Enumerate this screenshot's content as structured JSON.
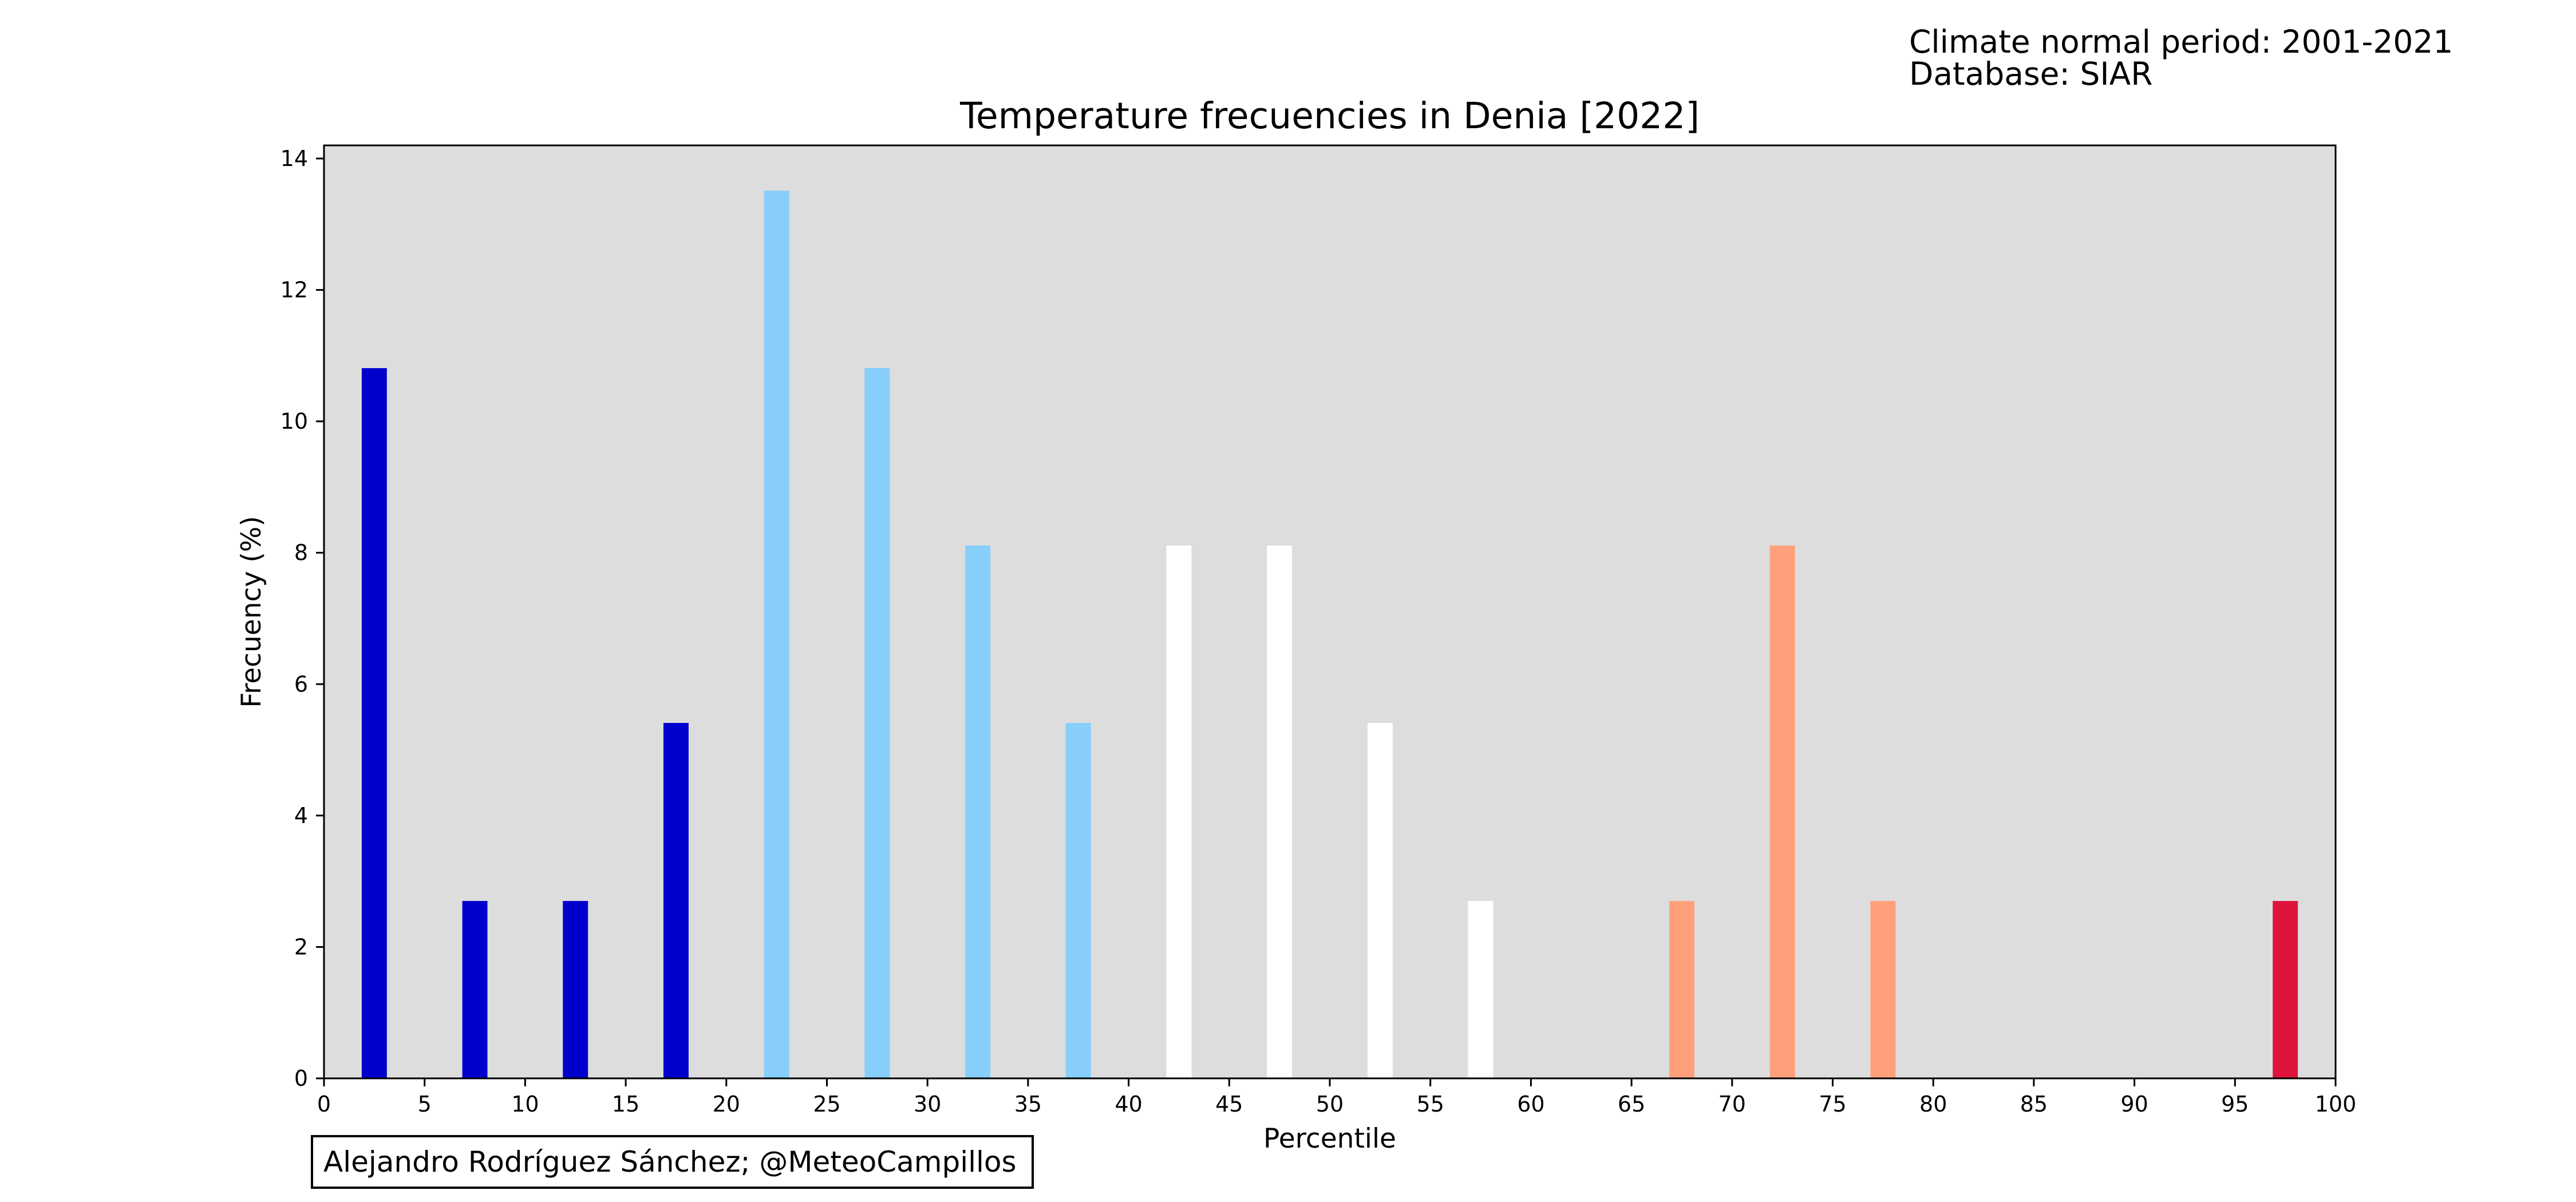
{
  "info": {
    "climate_normal": "Climate normal period: 2001-2021",
    "database": "Database: SIAR"
  },
  "credit": "Alejandro Rodríguez Sánchez; @MeteoCampillos",
  "colors": {
    "background": "#dddddd",
    "very_cold": "#0000cd",
    "cold": "#87cefa",
    "normal": "#ffffff",
    "warm": "#ffa07a",
    "very_warm": "#dc143c"
  },
  "chart_data": {
    "type": "bar",
    "title": "Temperature frecuencies in Denia [2022]",
    "xlabel": "Percentile",
    "ylabel": "Frecuency (%)",
    "xlim": [
      0,
      100
    ],
    "ylim": [
      0,
      14.2
    ],
    "xticks": [
      0,
      5,
      10,
      15,
      20,
      25,
      30,
      35,
      40,
      45,
      50,
      55,
      60,
      65,
      70,
      75,
      80,
      85,
      90,
      95,
      100
    ],
    "yticks": [
      0,
      2,
      4,
      6,
      8,
      10,
      12,
      14
    ],
    "bar_width": 1.25,
    "grid": false,
    "bars": [
      {
        "x": 2.5,
        "value": 10.81,
        "color": "#0000cd"
      },
      {
        "x": 7.5,
        "value": 2.7,
        "color": "#0000cd"
      },
      {
        "x": 12.5,
        "value": 2.7,
        "color": "#0000cd"
      },
      {
        "x": 17.5,
        "value": 5.41,
        "color": "#0000cd"
      },
      {
        "x": 22.5,
        "value": 13.51,
        "color": "#87cefa"
      },
      {
        "x": 27.5,
        "value": 10.81,
        "color": "#87cefa"
      },
      {
        "x": 32.5,
        "value": 8.11,
        "color": "#87cefa"
      },
      {
        "x": 37.5,
        "value": 5.41,
        "color": "#87cefa"
      },
      {
        "x": 42.5,
        "value": 8.11,
        "color": "#ffffff"
      },
      {
        "x": 47.5,
        "value": 8.11,
        "color": "#ffffff"
      },
      {
        "x": 52.5,
        "value": 5.41,
        "color": "#ffffff"
      },
      {
        "x": 57.5,
        "value": 2.7,
        "color": "#ffffff"
      },
      {
        "x": 62.5,
        "value": 0,
        "color": "#ffffff"
      },
      {
        "x": 67.5,
        "value": 2.7,
        "color": "#ffa07a"
      },
      {
        "x": 72.5,
        "value": 8.11,
        "color": "#ffa07a"
      },
      {
        "x": 77.5,
        "value": 2.7,
        "color": "#ffa07a"
      },
      {
        "x": 82.5,
        "value": 0,
        "color": "#ffa07a"
      },
      {
        "x": 87.5,
        "value": 0,
        "color": "#dc143c"
      },
      {
        "x": 92.5,
        "value": 0,
        "color": "#dc143c"
      },
      {
        "x": 97.5,
        "value": 2.7,
        "color": "#dc143c"
      }
    ]
  }
}
